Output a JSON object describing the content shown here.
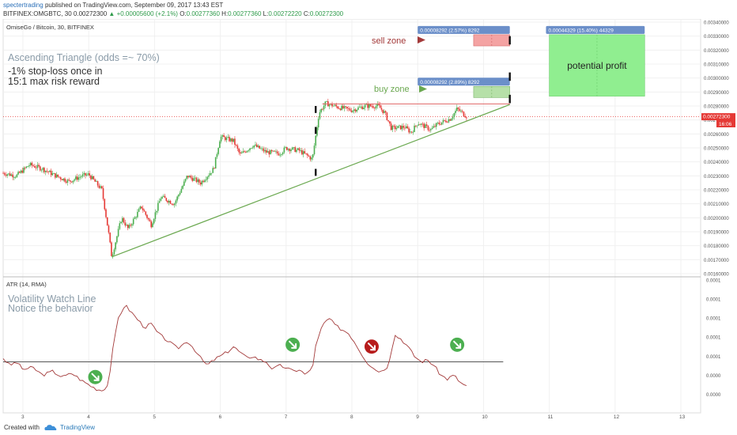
{
  "header": {
    "author": "spectertrading",
    "published_text": "published on TradingView.com, September 09, 2017 13:43 EST",
    "symbol_line": "BITFINEX:OMGBTC, 30",
    "last_price": "0.00272300",
    "change": "+0.00005600 (+2.1%)",
    "ohlc": [
      {
        "key": "O:",
        "value": "0.00277360"
      },
      {
        "key": "H:",
        "value": "0.00277360"
      },
      {
        "key": "L:",
        "value": "0.00272220"
      },
      {
        "key": "C:",
        "value": "0.00272300"
      }
    ]
  },
  "footer": {
    "created_with": "Created with",
    "brand": "TradingView"
  },
  "colors": {
    "up": "#4caf50",
    "down": "#e53935",
    "trend": "#6aa84f",
    "resistance": "#e06666",
    "atr_line": "#a33a3a",
    "watch_line": "#555555",
    "price_tag": "#e53935"
  },
  "chart_data": [
    {
      "type": "candlestick",
      "title": "OmiseGo / Bitcoin, 30, BITFINEX",
      "x_ticks": [
        "3",
        "4",
        "5",
        "6",
        "7",
        "8",
        "9",
        "10",
        "11",
        "12",
        "13"
      ],
      "y_ticks": [
        "0.00340000",
        "0.00330000",
        "0.00320000",
        "0.00310000",
        "0.00300000",
        "0.00290000",
        "0.00280000",
        "0.00270000",
        "0.00260000",
        "0.00250000",
        "0.00240000",
        "0.00230000",
        "0.00220000",
        "0.00210000",
        "0.00200000",
        "0.00190000",
        "0.00180000",
        "0.00170000",
        "0.00160000"
      ],
      "ylim": [
        0.0016,
        0.0034
      ],
      "xlim": [
        2.7,
        13.3
      ],
      "current_price": "0.00272300",
      "countdown": "16:06",
      "close_path": [
        [
          2.7,
          0.00232
        ],
        [
          2.9,
          0.0023
        ],
        [
          3.1,
          0.00238
        ],
        [
          3.3,
          0.00235
        ],
        [
          3.5,
          0.0023
        ],
        [
          3.7,
          0.00226
        ],
        [
          3.9,
          0.0023
        ],
        [
          4.0,
          0.00231
        ],
        [
          4.2,
          0.0022
        ],
        [
          4.3,
          0.0019
        ],
        [
          4.35,
          0.00172
        ],
        [
          4.5,
          0.002
        ],
        [
          4.6,
          0.00192
        ],
        [
          4.8,
          0.00208
        ],
        [
          4.95,
          0.00195
        ],
        [
          5.1,
          0.00215
        ],
        [
          5.3,
          0.0021
        ],
        [
          5.5,
          0.0023
        ],
        [
          5.7,
          0.00225
        ],
        [
          5.9,
          0.00235
        ],
        [
          6.0,
          0.00258
        ],
        [
          6.2,
          0.00255
        ],
        [
          6.3,
          0.00245
        ],
        [
          6.5,
          0.00252
        ],
        [
          6.7,
          0.00247
        ],
        [
          6.9,
          0.00246
        ],
        [
          7.0,
          0.0025
        ],
        [
          7.2,
          0.00248
        ],
        [
          7.4,
          0.00242
        ],
        [
          7.5,
          0.00275
        ],
        [
          7.6,
          0.00282
        ],
        [
          7.8,
          0.00279
        ],
        [
          8.0,
          0.00277
        ],
        [
          8.2,
          0.0028
        ],
        [
          8.4,
          0.0028
        ],
        [
          8.5,
          0.00275
        ],
        [
          8.6,
          0.00264
        ],
        [
          8.8,
          0.00265
        ],
        [
          8.9,
          0.00261
        ],
        [
          9.0,
          0.00268
        ],
        [
          9.2,
          0.00263
        ],
        [
          9.3,
          0.00267
        ],
        [
          9.5,
          0.00271
        ],
        [
          9.6,
          0.00278
        ],
        [
          9.75,
          0.002723
        ]
      ],
      "trend_line": [
        [
          4.35,
          0.00172
        ],
        [
          10.4,
          0.00281
        ]
      ],
      "resistance_line": [
        [
          7.55,
          0.002815
        ],
        [
          10.4,
          0.002815
        ]
      ],
      "sell_zone": {
        "label": "sell zone",
        "x": [
          9.85,
          10.4
        ],
        "y": [
          0.00323,
          0.00331
        ],
        "tag": "0.00008292 (2.57%) 8292"
      },
      "buy_zone": {
        "label": "buy zone",
        "x": [
          9.85,
          10.4
        ],
        "y": [
          0.00286,
          0.00294
        ],
        "tag": "0.00008292 (2.89%) 8292"
      },
      "profit_zone": {
        "label": "potential profit",
        "x": [
          11.0,
          12.45
        ],
        "y": [
          0.00287,
          0.00331
        ],
        "tag": "0.00044329 (15.40%) 44329"
      },
      "annotations": [
        "Ascending Triangle (odds =~ 70%)",
        "-1% stop-loss once in",
        "15:1 max risk reward"
      ]
    },
    {
      "type": "line",
      "title": "ATR (14, RMA)",
      "ylim": [
        2e-06,
        0.00013
      ],
      "y_ticks": [
        "0.0001",
        "0.0001",
        "0.0001",
        "0.0001",
        "0.0001",
        "0.0000",
        "0.0000"
      ],
      "y_tick_values": [
        0.00013,
        0.00011,
        9e-05,
        7e-05,
        5e-05,
        3e-05,
        1e-05
      ],
      "watch_line_y": 4.4e-05,
      "watch_line_x": [
        2.7,
        10.3
      ],
      "annotations": [
        "Volatility Watch Line",
        "Notice the behavior"
      ],
      "values": [
        [
          2.7,
          4.8e-05
        ],
        [
          2.8,
          4e-05
        ],
        [
          2.9,
          4.4e-05
        ],
        [
          3.0,
          3.6e-05
        ],
        [
          3.15,
          3.8e-05
        ],
        [
          3.3,
          3e-05
        ],
        [
          3.45,
          3.4e-05
        ],
        [
          3.6,
          2.8e-05
        ],
        [
          3.75,
          3.2e-05
        ],
        [
          3.9,
          2.4e-05
        ],
        [
          4.0,
          2e-05
        ],
        [
          4.1,
          1.6e-05
        ],
        [
          4.2,
          1.4e-05
        ],
        [
          4.3,
          2e-05
        ],
        [
          4.35,
          5e-05
        ],
        [
          4.45,
          9e-05
        ],
        [
          4.55,
          0.000104
        ],
        [
          4.65,
          9.6e-05
        ],
        [
          4.75,
          8.8e-05
        ],
        [
          4.85,
          8e-05
        ],
        [
          4.95,
          8.4e-05
        ],
        [
          5.05,
          7.4e-05
        ],
        [
          5.2,
          6.6e-05
        ],
        [
          5.35,
          5.8e-05
        ],
        [
          5.5,
          6.6e-05
        ],
        [
          5.6,
          5.8e-05
        ],
        [
          5.7,
          4.8e-05
        ],
        [
          5.8,
          4e-05
        ],
        [
          5.9,
          4.6e-05
        ],
        [
          6.0,
          5e-05
        ],
        [
          6.1,
          5.4e-05
        ],
        [
          6.2,
          6e-05
        ],
        [
          6.3,
          5.4e-05
        ],
        [
          6.4,
          4.8e-05
        ],
        [
          6.5,
          5e-05
        ],
        [
          6.6,
          4.6e-05
        ],
        [
          6.7,
          4.4e-05
        ],
        [
          6.8,
          3.6e-05
        ],
        [
          6.9,
          4e-05
        ],
        [
          7.0,
          3.8e-05
        ],
        [
          7.1,
          3.4e-05
        ],
        [
          7.2,
          3.6e-05
        ],
        [
          7.3,
          3e-05
        ],
        [
          7.4,
          3.8e-05
        ],
        [
          7.45,
          6e-05
        ],
        [
          7.55,
          8.2e-05
        ],
        [
          7.65,
          9e-05
        ],
        [
          7.75,
          8.2e-05
        ],
        [
          7.85,
          7.8e-05
        ],
        [
          7.95,
          7.4e-05
        ],
        [
          8.05,
          6.4e-05
        ],
        [
          8.15,
          5.2e-05
        ],
        [
          8.25,
          4.2e-05
        ],
        [
          8.35,
          3.6e-05
        ],
        [
          8.45,
          3.4e-05
        ],
        [
          8.55,
          4e-05
        ],
        [
          8.65,
          7.2e-05
        ],
        [
          8.75,
          6.8e-05
        ],
        [
          8.85,
          6e-05
        ],
        [
          8.95,
          5e-05
        ],
        [
          9.05,
          4.4e-05
        ],
        [
          9.15,
          4.6e-05
        ],
        [
          9.25,
          4e-05
        ],
        [
          9.35,
          3e-05
        ],
        [
          9.45,
          2.6e-05
        ],
        [
          9.55,
          3e-05
        ],
        [
          9.65,
          2.2e-05
        ],
        [
          9.75,
          1.8e-05
        ]
      ],
      "markers": [
        {
          "x": 4.1,
          "dir": "down",
          "color": "#4caf50"
        },
        {
          "x": 7.1,
          "dir": "down",
          "color": "#4caf50"
        },
        {
          "x": 8.3,
          "dir": "down",
          "color": "#b71c1c"
        },
        {
          "x": 9.6,
          "dir": "down",
          "color": "#4caf50"
        }
      ]
    }
  ]
}
